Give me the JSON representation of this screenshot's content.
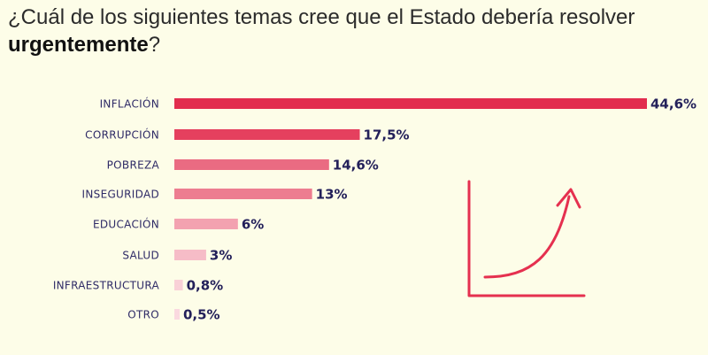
{
  "header": {
    "title_prefix": "¿Cuál de los siguientes temas cree que el Estado debería resolver ",
    "title_emphasis": "urgentemente",
    "title_suffix": "?"
  },
  "colors": {
    "background": "#fdfde8",
    "accent": "#e5304f",
    "label": "#2e2a66",
    "value": "#23205a"
  },
  "chart_data": {
    "type": "bar",
    "orientation": "horizontal",
    "title": "¿Cuál de los siguientes temas cree que el Estado debería resolver urgentemente?",
    "xlabel": "",
    "ylabel": "",
    "xlim": [
      0,
      44.6
    ],
    "categories": [
      "INFLACIÓN",
      "CORRUPCIÓN",
      "POBREZA",
      "INSEGURIDAD",
      "EDUCACIÓN",
      "SALUD",
      "INFRAESTRUCTURA",
      "OTRO"
    ],
    "values": [
      44.6,
      17.5,
      14.6,
      13,
      6,
      3,
      0.8,
      0.5
    ],
    "value_labels": [
      "44,6%",
      "17,5%",
      "14,6%",
      "13%",
      "6%",
      "3%",
      "0,8%",
      "0,5%"
    ],
    "bar_colors": [
      "#e22d4e",
      "#e5405e",
      "#ea6b82",
      "#ed7d90",
      "#f3a2b0",
      "#f6bcc7",
      "#f9d0d7",
      "#fad9df"
    ]
  }
}
